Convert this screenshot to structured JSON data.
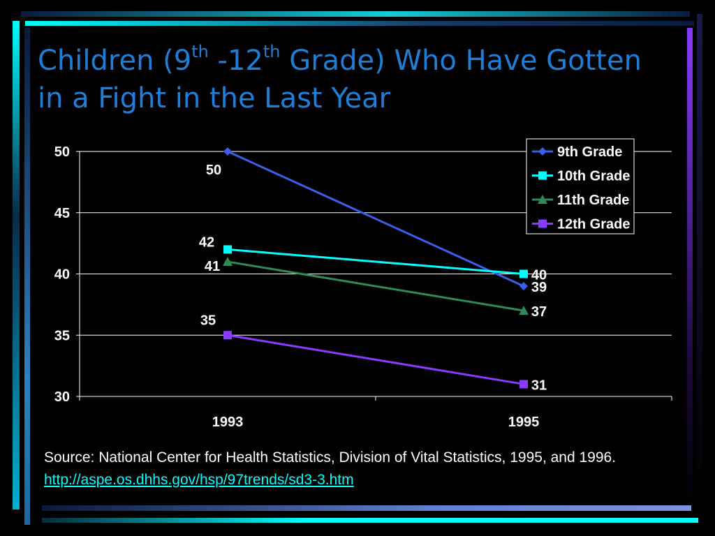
{
  "title": {
    "part1": "Children (9",
    "sup1": "th",
    "part2": " -12",
    "sup2": "th",
    "part3": " Grade) Who Have Gotten in a Fight in the Last Year"
  },
  "source": {
    "text": "Source: National Center for Health Statistics, Division of Vital Statistics, 1995, and 1996. ",
    "link": "http://aspe.os.dhhs.gov/hsp/97trends/sd3-3.htm"
  },
  "colors": {
    "title": "#1f7fd6",
    "background": "#000000",
    "text": "#ffffff"
  },
  "chart_data": {
    "type": "line",
    "title": "",
    "xlabel": "",
    "ylabel": "",
    "categories": [
      "1993",
      "1995"
    ],
    "ylim": [
      30,
      50
    ],
    "yticks": [
      30,
      35,
      40,
      45,
      50
    ],
    "grid": true,
    "legend_position": "top-right",
    "series": [
      {
        "name": "9th Grade",
        "values": [
          50,
          39
        ],
        "color": "#3a5fe8",
        "marker": "diamond"
      },
      {
        "name": "10th Grade",
        "values": [
          42,
          40
        ],
        "color": "#00ffff",
        "marker": "square"
      },
      {
        "name": "11th Grade",
        "values": [
          41,
          37
        ],
        "color": "#2e8b57",
        "marker": "triangle"
      },
      {
        "name": "12th Grade",
        "values": [
          35,
          31
        ],
        "color": "#8a3bff",
        "marker": "square"
      }
    ]
  }
}
